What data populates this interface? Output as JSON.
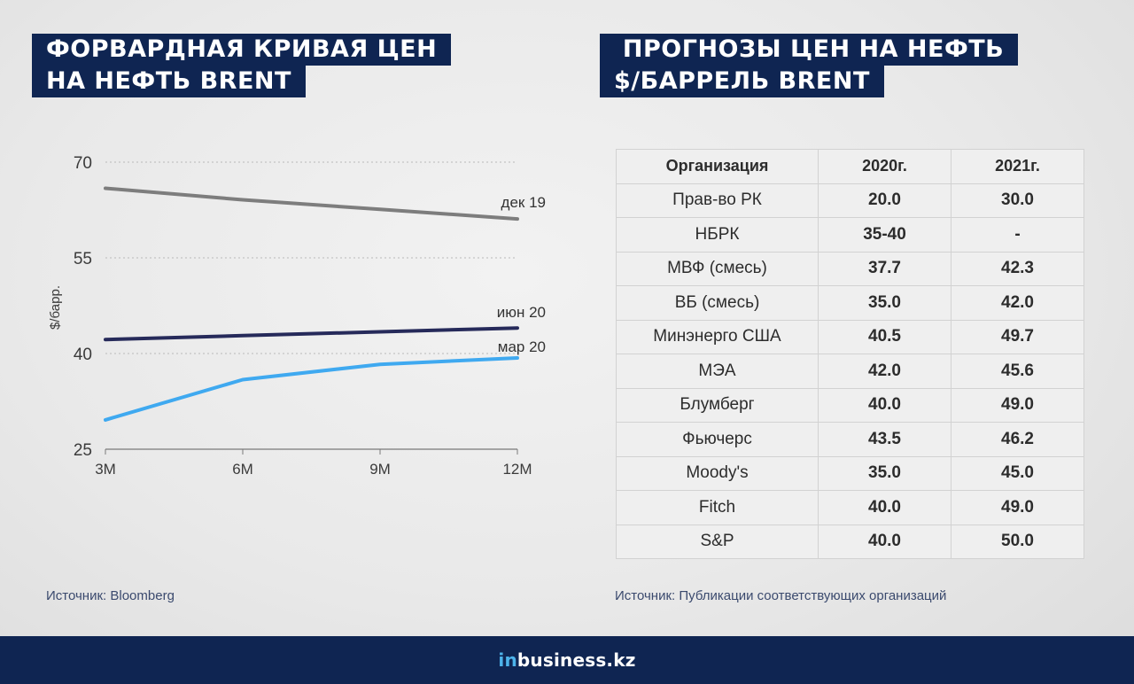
{
  "left_title": {
    "line1": "ФОРВАРДНАЯ КРИВАЯ ЦЕН",
    "line2": "НА НЕФТЬ BRENT"
  },
  "right_title": {
    "line1": " ПРОГНОЗЫ ЦЕН НА НЕФТЬ",
    "line2": "$/БАРРЕЛЬ BRENT"
  },
  "chart_data": {
    "type": "line",
    "title": "ФОРВАРДНАЯ КРИВАЯ ЦЕН НА НЕФТЬ BRENT",
    "xlabel": "",
    "ylabel": "$/барр.",
    "x": [
      "3M",
      "6M",
      "9M",
      "12M"
    ],
    "ylim": [
      25,
      70
    ],
    "yticks": [
      25,
      40,
      55,
      70
    ],
    "grid": true,
    "series": [
      {
        "name": "дек 19",
        "color": "#7d7d7d",
        "values": [
          65.9,
          64.1,
          62.6,
          61.1
        ]
      },
      {
        "name": "июн 20",
        "color": "#262a5a",
        "values": [
          42.2,
          42.8,
          43.4,
          44.0
        ]
      },
      {
        "name": "мар 20",
        "color": "#3fa9f0",
        "values": [
          29.6,
          35.9,
          38.3,
          39.3
        ]
      }
    ]
  },
  "source_left": "Источник: Bloomberg",
  "table": {
    "headers": [
      "Организация",
      "2020г.",
      "2021г."
    ],
    "rows": [
      [
        "Прав-во РК",
        "20.0",
        "30.0"
      ],
      [
        "НБРК",
        "35-40",
        "-"
      ],
      [
        "МВФ (смесь)",
        "37.7",
        "42.3"
      ],
      [
        "ВБ (смесь)",
        "35.0",
        "42.0"
      ],
      [
        "Минэнерго США",
        "40.5",
        "49.7"
      ],
      [
        "МЭА",
        "42.0",
        "45.6"
      ],
      [
        "Блумберг",
        "40.0",
        "49.0"
      ],
      [
        "Фьючерс",
        "43.5",
        "46.2"
      ],
      [
        "Moody's",
        "35.0",
        "45.0"
      ],
      [
        "Fitch",
        "40.0",
        "49.0"
      ],
      [
        "S&P",
        "40.0",
        "50.0"
      ]
    ]
  },
  "source_right": "Источник: Публикации соответствующих организаций",
  "footer": {
    "brand_prefix": "in",
    "brand_main": "business.kz"
  },
  "colors": {
    "navy": "#0f2552",
    "accent_blue": "#4db3ea"
  }
}
